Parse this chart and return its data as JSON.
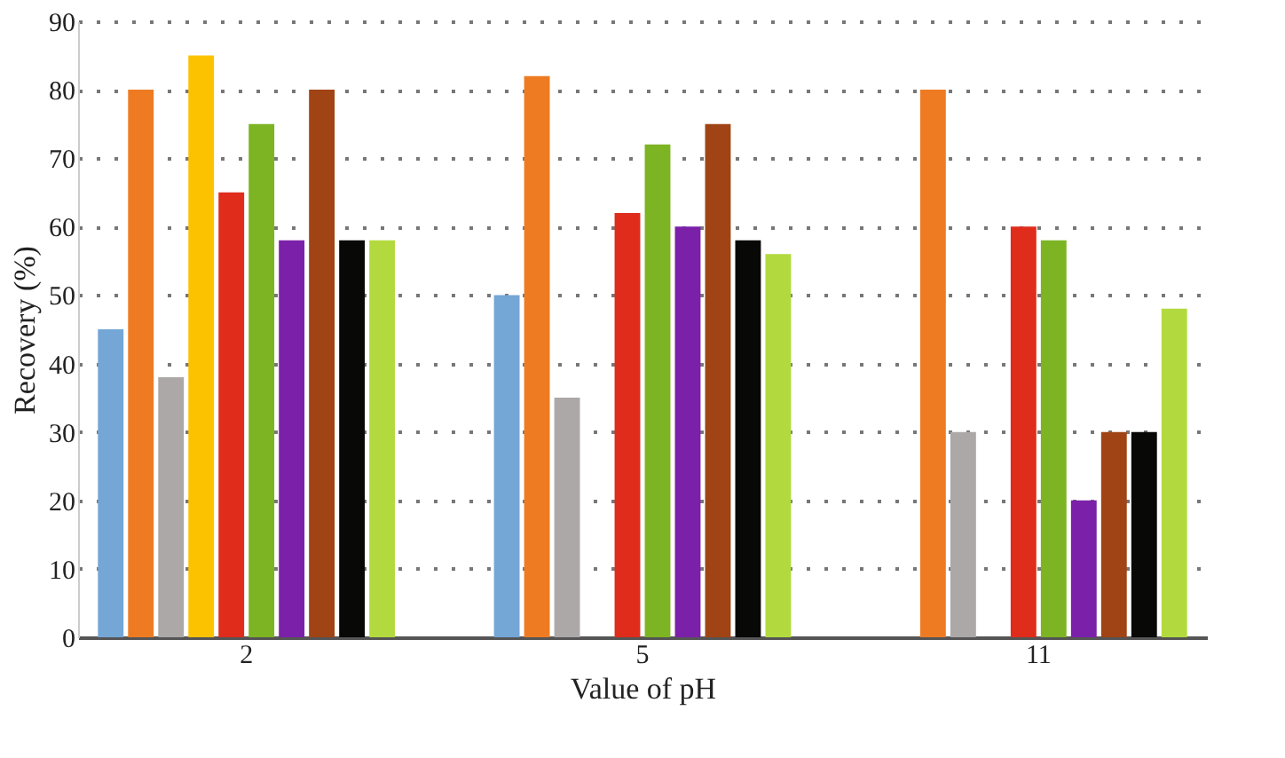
{
  "chart_data": {
    "type": "bar",
    "xlabel": "Value of pH",
    "ylabel": "Recovery (%)",
    "categories": [
      "2",
      "5",
      "11"
    ],
    "series": [
      {
        "color": "#74a6d6",
        "values": [
          45,
          50,
          null
        ]
      },
      {
        "color": "#ee7b22",
        "values": [
          80,
          82,
          80
        ]
      },
      {
        "color": "#aca8a7",
        "values": [
          38,
          35,
          30
        ]
      },
      {
        "color": "#fcc200",
        "values": [
          85,
          null,
          null
        ]
      },
      {
        "color": "#df2c1b",
        "values": [
          65,
          62,
          60
        ]
      },
      {
        "color": "#7cb423",
        "values": [
          75,
          72,
          58
        ]
      },
      {
        "color": "#7b20a9",
        "values": [
          58,
          60,
          20
        ]
      },
      {
        "color": "#a04415",
        "values": [
          80,
          75,
          30
        ]
      },
      {
        "color": "#080806",
        "values": [
          58,
          58,
          30
        ]
      },
      {
        "color": "#b2da3e",
        "values": [
          58,
          56,
          48
        ]
      }
    ],
    "ylim": [
      0,
      90
    ],
    "yticks": [
      0,
      10,
      20,
      30,
      40,
      50,
      60,
      70,
      80,
      90
    ],
    "grid": "y",
    "legend": false
  }
}
